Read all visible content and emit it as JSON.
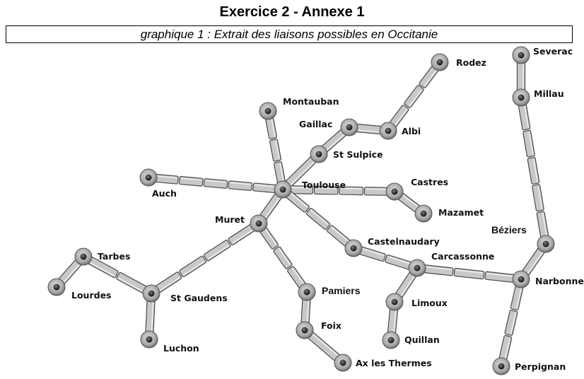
{
  "page": {
    "title": "Exercice 2 - Annexe 1",
    "subtitle": "graphique 1 : Extrait des liaisons possibles en Occitanie"
  },
  "colors": {
    "link_fill": "#c8c8c8",
    "link_stroke": "#4a4a4a",
    "node_outer": "#9a9a9a",
    "node_inner": "#2a2a2a"
  },
  "cities": [
    {
      "id": "severac",
      "name": "Severac"
    },
    {
      "id": "rodez",
      "name": "Rodez"
    },
    {
      "id": "millau",
      "name": "Millau"
    },
    {
      "id": "montauban",
      "name": "Montauban"
    },
    {
      "id": "gaillac",
      "name": "Gaillac"
    },
    {
      "id": "albi",
      "name": "Albi"
    },
    {
      "id": "stsulpice",
      "name": "St Sulpice"
    },
    {
      "id": "auch",
      "name": "Auch"
    },
    {
      "id": "toulouse",
      "name": "Toulouse"
    },
    {
      "id": "castres",
      "name": "Castres"
    },
    {
      "id": "mazamet",
      "name": "Mazamet"
    },
    {
      "id": "muret",
      "name": "Muret"
    },
    {
      "id": "beziers",
      "name": "Béziers"
    },
    {
      "id": "castelnaudary",
      "name": "Castelnaudary"
    },
    {
      "id": "carcassonne",
      "name": "Carcassonne"
    },
    {
      "id": "tarbes",
      "name": "Tarbes"
    },
    {
      "id": "lourdes",
      "name": "Lourdes"
    },
    {
      "id": "stgaudens",
      "name": "St Gaudens"
    },
    {
      "id": "pamiers",
      "name": "Pamiers"
    },
    {
      "id": "narbonne",
      "name": "Narbonne"
    },
    {
      "id": "limoux",
      "name": "Limoux"
    },
    {
      "id": "foix",
      "name": "Foix"
    },
    {
      "id": "quillan",
      "name": "Quillan"
    },
    {
      "id": "luchon",
      "name": "Luchon"
    },
    {
      "id": "axlesthermes",
      "name": "Ax les Thermes"
    },
    {
      "id": "perpignan",
      "name": "Perpignan"
    }
  ],
  "links": [
    [
      "severac",
      "millau"
    ],
    [
      "millau",
      "beziers"
    ],
    [
      "beziers",
      "narbonne"
    ],
    [
      "rodez",
      "albi"
    ],
    [
      "albi",
      "gaillac"
    ],
    [
      "gaillac",
      "stsulpice"
    ],
    [
      "stsulpice",
      "toulouse"
    ],
    [
      "montauban",
      "toulouse"
    ],
    [
      "auch",
      "toulouse"
    ],
    [
      "toulouse",
      "castres"
    ],
    [
      "castres",
      "mazamet"
    ],
    [
      "toulouse",
      "muret"
    ],
    [
      "toulouse",
      "castelnaudary"
    ],
    [
      "castelnaudary",
      "carcassonne"
    ],
    [
      "carcassonne",
      "narbonne"
    ],
    [
      "carcassonne",
      "limoux"
    ],
    [
      "limoux",
      "quillan"
    ],
    [
      "muret",
      "stgaudens"
    ],
    [
      "muret",
      "pamiers"
    ],
    [
      "pamiers",
      "foix"
    ],
    [
      "foix",
      "axlesthermes"
    ],
    [
      "stgaudens",
      "tarbes"
    ],
    [
      "tarbes",
      "lourdes"
    ],
    [
      "stgaudens",
      "luchon"
    ],
    [
      "narbonne",
      "perpignan"
    ]
  ]
}
